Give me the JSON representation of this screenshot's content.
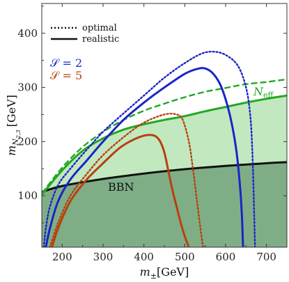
{
  "chart_data": {
    "type": "line",
    "xlabel": "m_{±}[GeV]",
    "ylabel": "m_{N_{2,3}} [GeV]",
    "x_tick_labels": [
      "200",
      "300",
      "400",
      "500",
      "600",
      "700"
    ],
    "y_tick_labels": [
      "100",
      "200",
      "300",
      "400"
    ],
    "xlim": [
      150,
      750
    ],
    "ylim": [
      5,
      455
    ],
    "legend": {
      "placement": "top-left",
      "entries": [
        {
          "label": "optimal",
          "style": "dotted"
        },
        {
          "label": "realistic",
          "style": "solid"
        }
      ]
    },
    "annotations": {
      "s2": "𝒮 = 2",
      "s5": "𝒮 = 5",
      "neff": "N",
      "neff_sub": "eff",
      "bbn": "BBN"
    },
    "colors": {
      "blue": "#1a24c8",
      "red": "#b8400e",
      "green": "#22a822",
      "black": "#111111",
      "neff_fill": "#c2e8c0",
      "bbn_fill": "#7fae86"
    },
    "series": [
      {
        "name": "BBN",
        "color": "black",
        "style": "solid",
        "x": [
          150,
          200,
          300,
          400,
          500,
          600,
          700,
          750
        ],
        "y": [
          107,
          118,
          131,
          141,
          149,
          155,
          160,
          162
        ]
      },
      {
        "name": "N_eff",
        "color": "green",
        "style": "dashed",
        "x": [
          150,
          200,
          250,
          300,
          350,
          400,
          450,
          500,
          550,
          600,
          650,
          700,
          750
        ],
        "y": [
          104,
          152,
          190,
          218,
          240,
          257,
          270,
          282,
          292,
          299,
          306,
          310,
          315
        ]
      },
      {
        "color": "green",
        "style": "solid",
        "x": [
          150,
          200,
          250,
          300,
          350,
          400,
          450,
          500,
          550,
          600,
          650,
          700,
          750
        ],
        "y": [
          102,
          147,
          183,
          206,
          222,
          232,
          240,
          247,
          256,
          264,
          272,
          279,
          285
        ]
      },
      {
        "color": "blue",
        "style": "dotted",
        "x": [
          155,
          160,
          170,
          190,
          220,
          260,
          300,
          350,
          400,
          450,
          500,
          540,
          570,
          600,
          630,
          650,
          660,
          665,
          668,
          670,
          672
        ],
        "y": [
          5,
          40,
          80,
          120,
          150,
          185,
          218,
          252,
          285,
          318,
          345,
          362,
          366,
          360,
          340,
          300,
          250,
          190,
          120,
          60,
          5
        ]
      },
      {
        "color": "blue",
        "style": "solid",
        "x": [
          160,
          170,
          190,
          220,
          260,
          300,
          350,
          400,
          450,
          500,
          530,
          550,
          570,
          590,
          610,
          625,
          635,
          640,
          642,
          643
        ],
        "y": [
          5,
          40,
          90,
          130,
          165,
          200,
          240,
          272,
          300,
          325,
          334,
          335,
          325,
          300,
          250,
          190,
          120,
          60,
          20,
          5
        ]
      },
      {
        "color": "red",
        "style": "dotted",
        "x": [
          170,
          190,
          220,
          260,
          300,
          350,
          400,
          450,
          480,
          495,
          510,
          520,
          530,
          540,
          545
        ],
        "y": [
          5,
          50,
          100,
          140,
          175,
          208,
          235,
          250,
          250,
          240,
          200,
          150,
          90,
          30,
          5
        ]
      },
      {
        "color": "red",
        "style": "solid",
        "x": [
          175,
          190,
          220,
          260,
          300,
          340,
          370,
          400,
          420,
          430,
          440,
          450,
          460,
          470,
          480,
          490,
          500,
          510
        ],
        "y": [
          5,
          40,
          90,
          130,
          160,
          188,
          202,
          211,
          212,
          209,
          200,
          180,
          145,
          110,
          80,
          50,
          25,
          5
        ]
      }
    ]
  }
}
